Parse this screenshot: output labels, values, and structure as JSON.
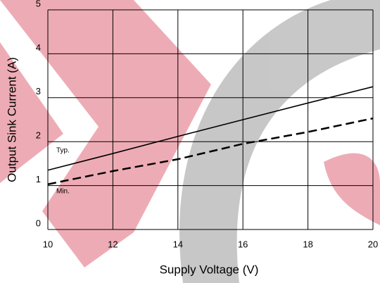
{
  "chart_data": {
    "type": "line",
    "xlabel": "Supply Voltage (V)",
    "ylabel": "Output Sink Current (A)",
    "x": [
      10,
      12,
      14,
      16,
      18,
      20
    ],
    "series": [
      {
        "name": "Typ.",
        "color": "#000000",
        "dash": false,
        "values": [
          1.35,
          1.73,
          2.12,
          2.5,
          2.88,
          3.25
        ]
      },
      {
        "name": "Min.",
        "color": "#000000",
        "dash": true,
        "values": [
          1.03,
          1.33,
          1.6,
          1.95,
          2.22,
          2.53
        ]
      }
    ],
    "xlim": [
      10,
      20
    ],
    "xticks": [
      10,
      12,
      14,
      16,
      18,
      20
    ],
    "ylim": [
      0,
      5
    ],
    "yticks": [
      0,
      1,
      2,
      3,
      4,
      5
    ],
    "grid": true
  }
}
